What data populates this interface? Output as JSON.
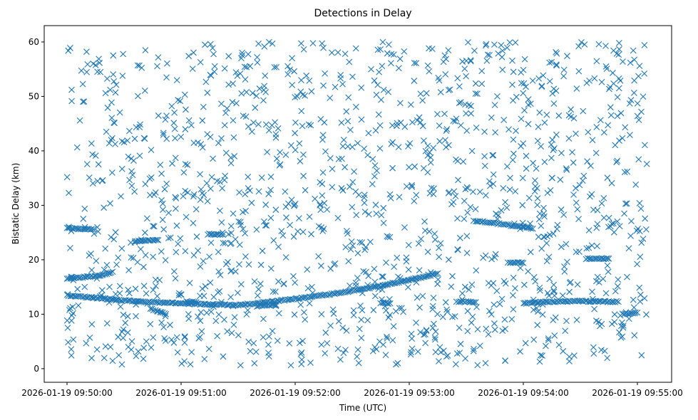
{
  "chart_data": {
    "type": "scatter",
    "title": "Detections in Delay",
    "xlabel": "Time (UTC)",
    "ylabel": "Bistatic Delay (km)",
    "marker": "x",
    "color": "#1f77b4",
    "grid": false,
    "x_is_datetime": true,
    "xlim": [
      "2026-01-19 09:49:48",
      "2026-01-19 09:55:18"
    ],
    "ylim": [
      -2.5,
      63
    ],
    "x_ticks": [
      "2026-01-19 09:50:00",
      "2026-01-19 09:51:00",
      "2026-01-19 09:52:00",
      "2026-01-19 09:53:00",
      "2026-01-19 09:54:00",
      "2026-01-19 09:55:00"
    ],
    "y_ticks": [
      0,
      10,
      20,
      30,
      40,
      50,
      60
    ],
    "tracks": [
      {
        "description": "lower track",
        "points": [
          [
            "2026-01-19 09:50:00",
            13.5
          ],
          [
            "2026-01-19 09:50:15",
            13.0
          ],
          [
            "2026-01-19 09:50:30",
            12.5
          ],
          [
            "2026-01-19 09:50:45",
            12.2
          ],
          [
            "2026-01-19 09:51:00",
            12.0
          ],
          [
            "2026-01-19 09:51:15",
            11.8
          ],
          [
            "2026-01-19 09:51:30",
            11.7
          ],
          [
            "2026-01-19 09:51:45",
            12.2
          ],
          [
            "2026-01-19 09:52:00",
            12.8
          ],
          [
            "2026-01-19 09:52:15",
            13.5
          ],
          [
            "2026-01-19 09:52:30",
            14.3
          ],
          [
            "2026-01-19 09:52:45",
            15.2
          ],
          [
            "2026-01-19 09:53:00",
            16.3
          ],
          [
            "2026-01-19 09:53:15",
            17.5
          ]
        ]
      },
      {
        "description": "upper track",
        "points": [
          [
            "2026-01-19 09:50:00",
            16.5
          ],
          [
            "2026-01-19 09:50:08",
            16.8
          ],
          [
            "2026-01-19 09:50:16",
            17.0
          ],
          [
            "2026-01-19 09:50:24",
            17.8
          ]
        ]
      },
      {
        "description": "mid track",
        "points": [
          [
            "2026-01-19 09:50:00",
            25.8
          ],
          [
            "2026-01-19 09:50:08",
            25.7
          ],
          [
            "2026-01-19 09:50:14",
            25.6
          ]
        ]
      },
      {
        "description": "track",
        "points": [
          [
            "2026-01-19 09:51:03",
            12.3
          ],
          [
            "2026-01-19 09:51:08",
            12.2
          ]
        ]
      },
      {
        "description": "track",
        "points": [
          [
            "2026-01-19 09:50:36",
            23.5
          ],
          [
            "2026-01-19 09:50:48",
            23.6
          ]
        ]
      },
      {
        "description": "track",
        "points": [
          [
            "2026-01-19 09:51:14",
            24.7
          ],
          [
            "2026-01-19 09:51:22",
            24.6
          ]
        ]
      },
      {
        "description": "track",
        "points": [
          [
            "2026-01-19 09:53:34",
            27.2
          ],
          [
            "2026-01-19 09:53:44",
            26.8
          ],
          [
            "2026-01-19 09:53:55",
            26.2
          ],
          [
            "2026-01-19 09:54:05",
            25.7
          ]
        ]
      },
      {
        "description": "track",
        "points": [
          [
            "2026-01-19 09:54:00",
            12.0
          ],
          [
            "2026-01-19 09:54:15",
            12.3
          ],
          [
            "2026-01-19 09:54:30",
            12.4
          ],
          [
            "2026-01-19 09:54:45",
            12.3
          ],
          [
            "2026-01-19 09:54:50",
            12.3
          ]
        ]
      },
      {
        "description": "track",
        "points": [
          [
            "2026-01-19 09:54:33",
            20.2
          ],
          [
            "2026-01-19 09:54:45",
            20.2
          ]
        ]
      },
      {
        "description": "track",
        "points": [
          [
            "2026-01-19 09:53:52",
            19.5
          ],
          [
            "2026-01-19 09:54:00",
            19.4
          ]
        ]
      },
      {
        "description": "track",
        "points": [
          [
            "2026-01-19 09:54:52",
            10.0
          ],
          [
            "2026-01-19 09:55:00",
            10.3
          ]
        ]
      },
      {
        "description": "track",
        "points": [
          [
            "2026-01-19 09:50:44",
            11.0
          ],
          [
            "2026-01-19 09:50:52",
            10.0
          ]
        ]
      },
      {
        "description": "track",
        "points": [
          [
            "2026-01-19 09:53:25",
            12.3
          ],
          [
            "2026-01-19 09:53:35",
            12.2
          ]
        ]
      },
      {
        "description": "track",
        "points": [
          [
            "2026-01-19 09:52:45",
            12.1
          ],
          [
            "2026-01-19 09:52:50",
            12.0
          ]
        ]
      },
      {
        "description": "track",
        "points": [
          [
            "2026-01-19 09:51:40",
            11.5
          ],
          [
            "2026-01-19 09:51:50",
            11.7
          ]
        ]
      }
    ],
    "clutter": {
      "description": "scattered detections spread uniformly over the full time span and 0–60 km",
      "approx_count": 1400,
      "x_range": [
        "2026-01-19 09:50:00",
        "2026-01-19 09:55:05"
      ],
      "y_range": [
        0.5,
        60
      ]
    }
  }
}
